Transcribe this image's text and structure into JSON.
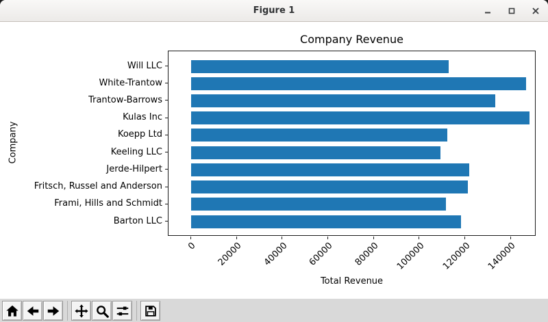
{
  "window": {
    "title": "Figure 1",
    "controls": {
      "minimize": "minimize",
      "maximize": "maximize",
      "close": "close"
    }
  },
  "chart_data": {
    "type": "bar",
    "orientation": "horizontal",
    "title": "Company Revenue",
    "xlabel": "Total Revenue",
    "ylabel": "Company",
    "category_order": "top-to-bottom",
    "categories": [
      "Will LLC",
      "White-Trantow",
      "Trantow-Barrows",
      "Kulas Inc",
      "Koepp Ltd",
      "Keeling LLC",
      "Jerde-Hilpert",
      "Fritsch, Russel and Anderson",
      "Frami, Hills and Schmidt",
      "Barton LLC"
    ],
    "values": [
      112500,
      146500,
      133000,
      148000,
      112000,
      109000,
      121500,
      121000,
      111500,
      118000
    ],
    "xticks": [
      0,
      20000,
      40000,
      60000,
      80000,
      100000,
      120000,
      140000
    ],
    "xtick_rotation": 45,
    "xlim": [
      -10000,
      151000
    ],
    "bar_color": "#1f77b4",
    "grid": false,
    "legend": null
  },
  "toolbar": {
    "buttons": [
      {
        "name": "home",
        "icon": "home-icon"
      },
      {
        "name": "back",
        "icon": "arrow-left-icon"
      },
      {
        "name": "forward",
        "icon": "arrow-right-icon"
      },
      {
        "name": "pan",
        "icon": "move-arrows-icon"
      },
      {
        "name": "zoom",
        "icon": "magnifier-icon"
      },
      {
        "name": "configure-subplots",
        "icon": "sliders-icon"
      },
      {
        "name": "save",
        "icon": "floppy-disk-icon"
      }
    ]
  },
  "colors": {
    "bar": "#1f77b4",
    "canvas_bg": "#ffffff",
    "toolbar_bg": "#d9d9d9",
    "titlebar_bg": "#f5f4f2"
  }
}
